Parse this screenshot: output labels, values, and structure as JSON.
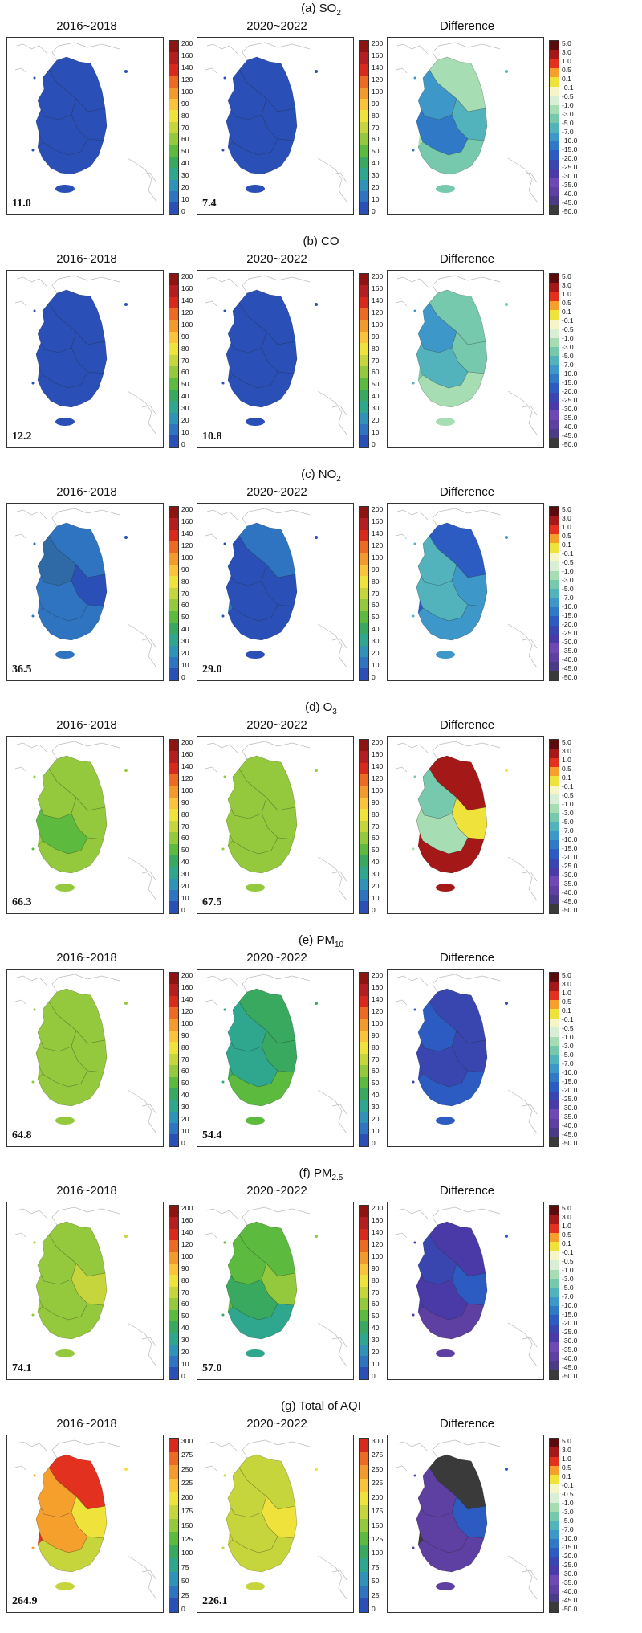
{
  "columns": [
    "2016~2018",
    "2020~2022",
    "Difference"
  ],
  "colors": {
    "conc": [
      "#2a4fb6",
      "#2f74c0",
      "#2f93b8",
      "#2fa68e",
      "#38a95e",
      "#5cba3e",
      "#94c93d",
      "#c7d53c",
      "#efe23a",
      "#f9c33a",
      "#f39a2c",
      "#ec6a22",
      "#d9281c",
      "#b51e1e",
      "#8e1412"
    ],
    "diff": [
      "#3a3a3a",
      "#4b3a86",
      "#5e3fa2",
      "#6e48b4",
      "#4a3aa8",
      "#3a46b0",
      "#2c5cc2",
      "#2f79c6",
      "#3d97c8",
      "#52b3bc",
      "#77c9ad",
      "#a7ddb2",
      "#d8efd5",
      "#f6f5c8",
      "#efe23a",
      "#f5a02c",
      "#e2311f",
      "#a51818",
      "#5a0c0c"
    ]
  },
  "conc_ticks": [
    "200",
    "160",
    "140",
    "120",
    "100",
    "90",
    "80",
    "70",
    "60",
    "50",
    "40",
    "30",
    "20",
    "10",
    "0"
  ],
  "aqi_ticks": [
    "300",
    "275",
    "250",
    "225",
    "200",
    "175",
    "150",
    "125",
    "100",
    "75",
    "50",
    "25",
    "0"
  ],
  "diff_ticks": [
    "5.0",
    "3.0",
    "1.0",
    "0.5",
    "0.1",
    "-0.1",
    "-0.5",
    "-1.0",
    "-3.0",
    "-5.0",
    "-7.0",
    "-10.0",
    "-15.0",
    "-20.0",
    "-25.0",
    "-30.0",
    "-35.0",
    "-40.0",
    "-45.0",
    "-50.0"
  ],
  "sections": [
    {
      "label_main": "(a) SO",
      "label_sub": "2",
      "avg_a": "11.0",
      "avg_b": "7.4"
    },
    {
      "label_main": "(b) CO",
      "label_sub": "",
      "avg_a": "12.2",
      "avg_b": "10.8"
    },
    {
      "label_main": "(c) NO",
      "label_sub": "2",
      "avg_a": "36.5",
      "avg_b": "29.0"
    },
    {
      "label_main": "(d) O",
      "label_sub": "3",
      "avg_a": "66.3",
      "avg_b": "67.5"
    },
    {
      "label_main": "(e) PM",
      "label_sub": "10",
      "avg_a": "64.8",
      "avg_b": "54.4"
    },
    {
      "label_main": "(f) PM",
      "label_sub": "2.5",
      "avg_a": "74.1",
      "avg_b": "57.0"
    },
    {
      "label_main": "(g) Total of AQI",
      "label_sub": "",
      "avg_a": "264.9",
      "avg_b": "226.1"
    }
  ],
  "fills": [
    {
      "a": [
        "#2a4fb6",
        "#2a4fb6",
        "#2a4fb6",
        "#2a4fb6",
        "#2a4fb6"
      ],
      "b": [
        "#2a4fb6",
        "#2a4fb6",
        "#2a4fb6",
        "#2a4fb6",
        "#2a4fb6"
      ],
      "d": [
        "#a7ddb2",
        "#3d97c8",
        "#52b3bc",
        "#2f79c6",
        "#77c9ad"
      ]
    },
    {
      "a": [
        "#2a4fb6",
        "#2a4fb6",
        "#2a4fb6",
        "#2a4fb6",
        "#2a4fb6"
      ],
      "b": [
        "#2a4fb6",
        "#2a4fb6",
        "#2a4fb6",
        "#2a4fb6",
        "#2a4fb6"
      ],
      "d": [
        "#77c9ad",
        "#3d97c8",
        "#77c9ad",
        "#52b3bc",
        "#a7ddb2"
      ]
    },
    {
      "a": [
        "#2f74c0",
        "#2f6aa6",
        "#2a4fb6",
        "#2f74c0",
        "#2f74c0"
      ],
      "b": [
        "#2f74c0",
        "#2a4fb6",
        "#2a4fb6",
        "#2a4fb6",
        "#2a4fb6"
      ],
      "d": [
        "#2c5cc2",
        "#52b3bc",
        "#3d97c8",
        "#52b3bc",
        "#3d97c8"
      ]
    },
    {
      "a": [
        "#94c93d",
        "#94c93d",
        "#94c93d",
        "#5cba3e",
        "#94c93d"
      ],
      "b": [
        "#94c93d",
        "#94c93d",
        "#94c93d",
        "#94c93d",
        "#94c93d"
      ],
      "d": [
        "#a51818",
        "#77c9ad",
        "#efe23a",
        "#a7ddb2",
        "#a51818"
      ]
    },
    {
      "a": [
        "#94c93d",
        "#94c93d",
        "#94c93d",
        "#94c93d",
        "#94c93d"
      ],
      "b": [
        "#38a95e",
        "#2fa68e",
        "#38a95e",
        "#2fa68e",
        "#5cba3e"
      ],
      "d": [
        "#3a46b0",
        "#2c5cc2",
        "#3a46b0",
        "#3a46b0",
        "#2c5cc2"
      ]
    },
    {
      "a": [
        "#94c93d",
        "#94c93d",
        "#c7d53c",
        "#94c93d",
        "#94c93d"
      ],
      "b": [
        "#5cba3e",
        "#5cba3e",
        "#94c93d",
        "#38a95e",
        "#2fa68e"
      ],
      "d": [
        "#4a3aa8",
        "#3a46b0",
        "#2c5cc2",
        "#4a3aa8",
        "#5e3fa2"
      ]
    },
    {
      "a": [
        "#e2311f",
        "#f5a02c",
        "#efe23a",
        "#f5a02c",
        "#c7d53c"
      ],
      "b": [
        "#c7d53c",
        "#c7d53c",
        "#efe23a",
        "#c7d53c",
        "#c7d53c"
      ],
      "d": [
        "#3a3a3a",
        "#5e3fa2",
        "#2c5cc2",
        "#5e3fa2",
        "#5e3fa2"
      ]
    }
  ]
}
